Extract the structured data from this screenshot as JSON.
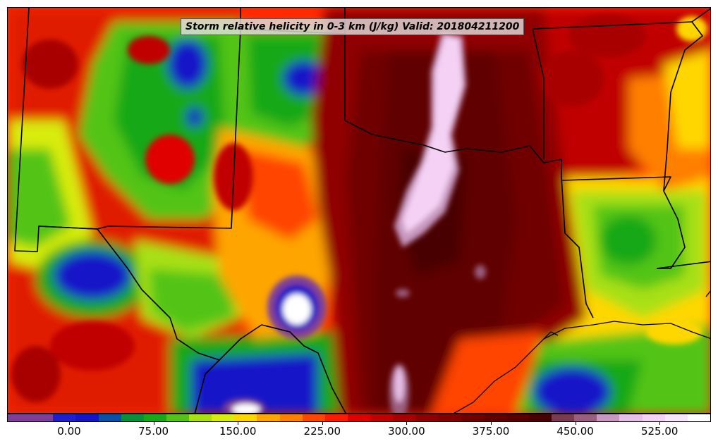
{
  "title": "Storm relative helicity in 0-3 km (J/kg) Valid: 201804211200",
  "colorbar": {
    "colors": [
      "#7f3f98",
      "#7f3f98",
      "#1f1fcf",
      "#1414c8",
      "#0a4fa8",
      "#0a8f3a",
      "#18a818",
      "#52c418",
      "#a8e012",
      "#d8ec10",
      "#ffd700",
      "#ffa500",
      "#ff7f00",
      "#ff4500",
      "#ff1a00",
      "#e00000",
      "#c00000",
      "#a80000",
      "#900000",
      "#800000",
      "#700000",
      "#600000",
      "#580000",
      "#4a0000",
      "#7a3a52",
      "#9a5f80",
      "#c898c0",
      "#e8bfe8",
      "#f5d2f5",
      "#fae6fa",
      "#ffffff"
    ],
    "tick_labels": [
      "0.00",
      "75.00",
      "150.00",
      "225.00",
      "300.00",
      "375.00",
      "450.00",
      "525.00"
    ]
  }
}
